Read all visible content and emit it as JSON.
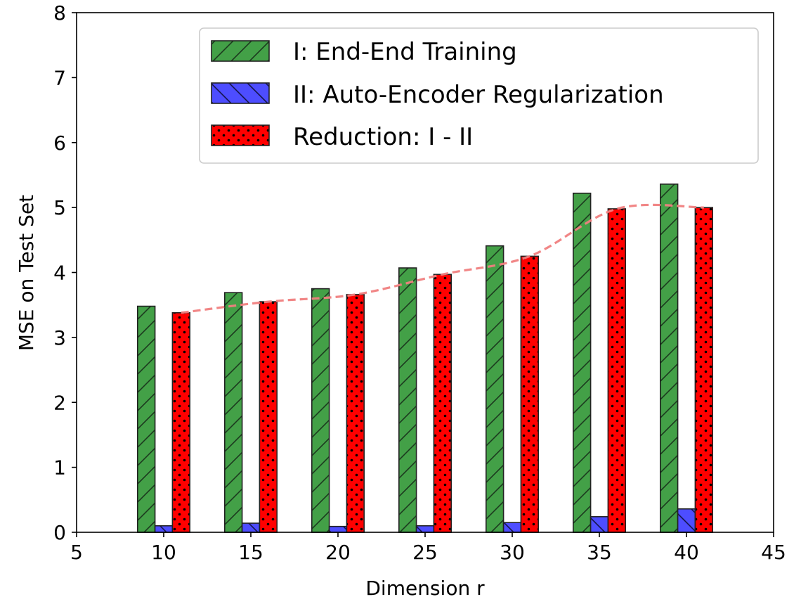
{
  "chart_data": {
    "type": "bar",
    "xlabel": "Dimension r",
    "ylabel": "MSE on Test Set",
    "xlim": [
      5,
      45
    ],
    "ylim": [
      0,
      8
    ],
    "x_ticks": [
      "5",
      "10",
      "15",
      "20",
      "25",
      "30",
      "35",
      "40",
      "45"
    ],
    "y_ticks": [
      "0",
      "1",
      "2",
      "3",
      "4",
      "5",
      "6",
      "7",
      "8"
    ],
    "grid": false,
    "legend_position": "top-right",
    "categories": [
      10,
      15,
      20,
      25,
      30,
      35,
      40
    ],
    "series": [
      {
        "name": "I: End-End Training",
        "values": [
          3.48,
          3.69,
          3.75,
          4.07,
          4.41,
          5.22,
          5.36
        ],
        "color": "#43a047",
        "pattern": "diagonal-forward"
      },
      {
        "name": "II: Auto-Encoder Regularization",
        "values": [
          0.1,
          0.14,
          0.09,
          0.1,
          0.15,
          0.24,
          0.36
        ],
        "color": "#4d4dff",
        "pattern": "diagonal-back"
      },
      {
        "name": "Reduction: I - II",
        "values": [
          3.38,
          3.55,
          3.66,
          3.97,
          4.25,
          4.98,
          5.0
        ],
        "color": "#ff0000",
        "pattern": "dots"
      }
    ],
    "trend_line": {
      "series": "Reduction: I - II",
      "color": "#f08080",
      "style": "dashed"
    }
  }
}
